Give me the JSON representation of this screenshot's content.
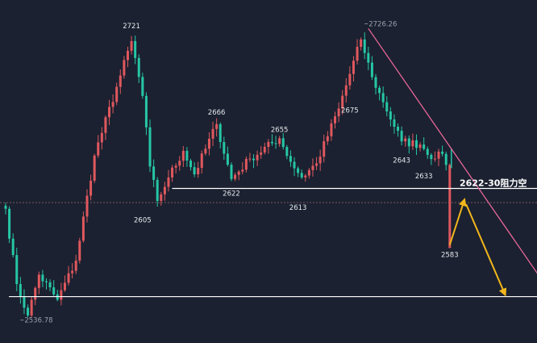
{
  "chart_data": {
    "type": "candlestick",
    "y_range": [
      2525,
      2735
    ],
    "candle_count": 120,
    "colors": {
      "background": "#1b2130",
      "up": "#e0585e",
      "down": "#26c6a6",
      "trendline": "#e8669a",
      "arrow": "#f2b61c",
      "level_line": "#ffffff",
      "dashed_line": "#7c5860"
    },
    "swing_points": [
      {
        "i": 0,
        "price": 2608
      },
      {
        "i": 3,
        "price": 2560
      },
      {
        "i": 6,
        "price": 2540
      },
      {
        "i": 9,
        "price": 2566
      },
      {
        "i": 14,
        "price": 2550
      },
      {
        "i": 19,
        "price": 2575
      },
      {
        "i": 24,
        "price": 2642
      },
      {
        "i": 31,
        "price": 2693
      },
      {
        "i": 34,
        "price": 2715
      },
      {
        "i": 37,
        "price": 2680
      },
      {
        "i": 39,
        "price": 2635
      },
      {
        "i": 41,
        "price": 2613
      },
      {
        "i": 44,
        "price": 2628
      },
      {
        "i": 48,
        "price": 2645
      },
      {
        "i": 51,
        "price": 2630
      },
      {
        "i": 57,
        "price": 2662
      },
      {
        "i": 61,
        "price": 2627
      },
      {
        "i": 66,
        "price": 2640
      },
      {
        "i": 74,
        "price": 2653
      },
      {
        "i": 77,
        "price": 2638
      },
      {
        "i": 80,
        "price": 2628
      },
      {
        "i": 84,
        "price": 2637
      },
      {
        "i": 90,
        "price": 2672
      },
      {
        "i": 96,
        "price": 2716
      },
      {
        "i": 99,
        "price": 2692
      },
      {
        "i": 102,
        "price": 2676
      },
      {
        "i": 107,
        "price": 2651
      },
      {
        "i": 112,
        "price": 2649
      },
      {
        "i": 116,
        "price": 2640
      },
      {
        "i": 118,
        "price": 2643
      },
      {
        "i": 119,
        "price": 2636
      }
    ],
    "drop_candle": {
      "open": 2636,
      "high": 2637,
      "low": 2583,
      "close": 2611
    },
    "labels": [
      {
        "text": "2721",
        "i": 34,
        "price": 2721,
        "pos": "above"
      },
      {
        "text": "2726.26",
        "i": 97,
        "price": 2726,
        "pos": "right-gray"
      },
      {
        "text": "2666",
        "i": 57,
        "price": 2666,
        "pos": "above"
      },
      {
        "text": "2655",
        "i": 74,
        "price": 2655,
        "pos": "above"
      },
      {
        "text": "2675",
        "i": 93,
        "price": 2675,
        "pos": "below"
      },
      {
        "text": "2643",
        "i": 107,
        "price": 2643,
        "pos": "below"
      },
      {
        "text": "2633",
        "i": 113,
        "price": 2633,
        "pos": "below"
      },
      {
        "text": "2622",
        "i": 61,
        "price": 2622,
        "pos": "below"
      },
      {
        "text": "2605",
        "i": 37,
        "price": 2605,
        "pos": "below"
      },
      {
        "text": "2613",
        "i": 79,
        "price": 2613,
        "pos": "below"
      },
      {
        "text": "2583",
        "i": 120,
        "price": 2583,
        "pos": "below"
      },
      {
        "text": "2536.78",
        "i": 4,
        "price": 2537,
        "pos": "right-gray"
      }
    ],
    "resistance_line": {
      "price": 2621
    },
    "current_price_line": {
      "price": 2612
    },
    "support_line": {
      "price": 2552
    },
    "trendline": {
      "from_i": 98,
      "from_price": 2723,
      "to_i": 148,
      "to_price": 2552
    },
    "annotation": {
      "text": "2622-30阻力空",
      "i": 122,
      "price": 2621
    },
    "projection": [
      {
        "i": 120,
        "price": 2585
      },
      {
        "i": 124,
        "price": 2614
      },
      {
        "i": 135,
        "price": 2552
      }
    ]
  }
}
